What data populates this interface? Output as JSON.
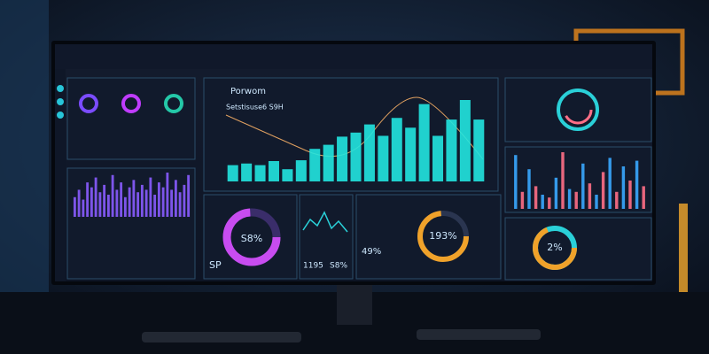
{
  "main_chart": {
    "title": "Porwom",
    "subtitle": "Setstisuse6 S9H",
    "color": "#22e6e0",
    "values": [
      20,
      22,
      20,
      25,
      15,
      26,
      40,
      45,
      55,
      60,
      70,
      56,
      78,
      66,
      95,
      56,
      76,
      100,
      76
    ]
  },
  "left_bars": {
    "color": "#8a5cff",
    "values": [
      40,
      55,
      35,
      70,
      60,
      80,
      50,
      65,
      45,
      85,
      55,
      70,
      40,
      60,
      75,
      50,
      65,
      55,
      80,
      45,
      70,
      60,
      90,
      55,
      75,
      50,
      65,
      85
    ]
  },
  "right_bars": {
    "colors": [
      "#3aa8ff",
      "#ff6f86"
    ],
    "values": [
      95,
      30,
      70,
      40,
      25,
      20,
      55,
      100,
      35,
      30,
      80,
      45,
      25,
      65,
      90,
      30,
      75,
      50,
      85,
      40
    ]
  },
  "gauges": [
    {
      "label": "S8%"
    },
    {
      "label": "193%"
    },
    {
      "label": "2%"
    }
  ],
  "stats": {
    "left": "SP",
    "mid": "1195",
    "mid_pct": "S8%",
    "pct": "49%"
  }
}
